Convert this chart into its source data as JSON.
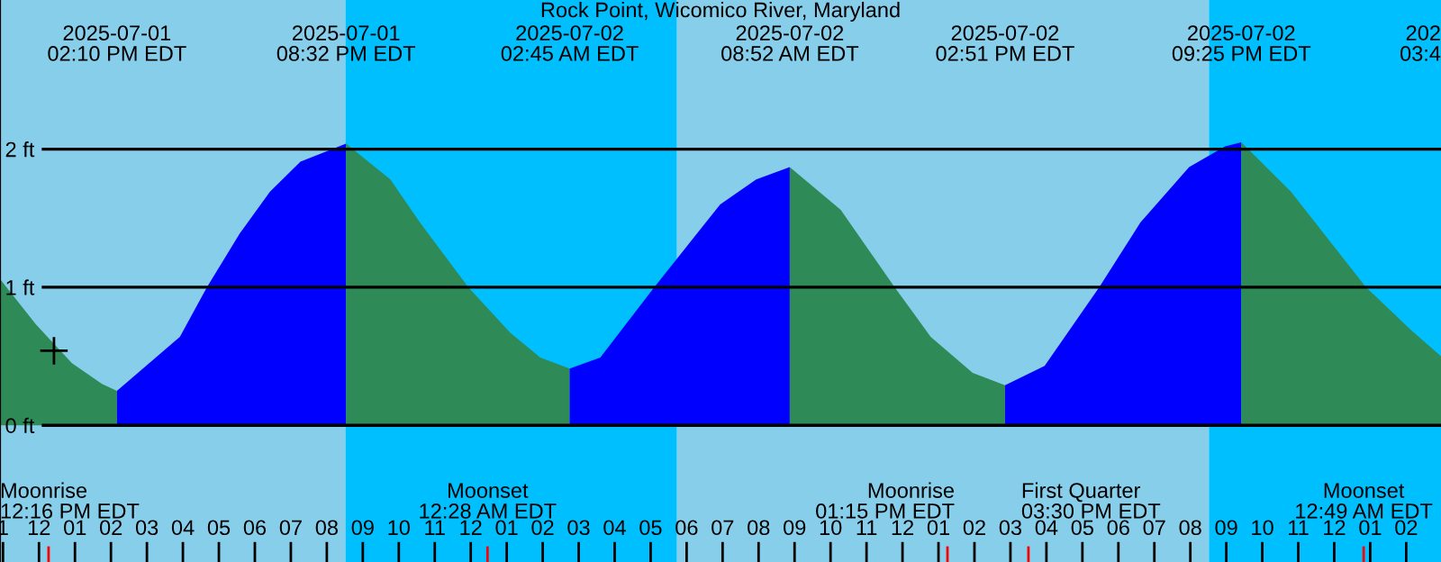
{
  "chart_data": {
    "type": "area",
    "title": "Rock Point, Wicomico River, Maryland",
    "xlim": [
      "2025-07-01T10:55",
      "2025-07-03T02:58"
    ],
    "ylim": [
      -0.99,
      3.08
    ],
    "yticks": [
      {
        "value": 0,
        "label": "0 ft"
      },
      {
        "value": 1,
        "label": "1 ft"
      },
      {
        "value": 2,
        "label": "2 ft"
      }
    ],
    "xticks": [
      {
        "value": "2025-07-01T11:00",
        "label": "1"
      },
      {
        "value": "2025-07-01T12:00",
        "label": "12"
      },
      {
        "value": "2025-07-01T13:00",
        "label": "01"
      },
      {
        "value": "2025-07-01T14:00",
        "label": "02"
      },
      {
        "value": "2025-07-01T15:00",
        "label": "03"
      },
      {
        "value": "2025-07-01T16:00",
        "label": "04"
      },
      {
        "value": "2025-07-01T17:00",
        "label": "05"
      },
      {
        "value": "2025-07-01T18:00",
        "label": "06"
      },
      {
        "value": "2025-07-01T19:00",
        "label": "07"
      },
      {
        "value": "2025-07-01T20:00",
        "label": "08"
      },
      {
        "value": "2025-07-01T21:00",
        "label": "09"
      },
      {
        "value": "2025-07-01T22:00",
        "label": "10"
      },
      {
        "value": "2025-07-01T23:00",
        "label": "11"
      },
      {
        "value": "2025-07-02T00:00",
        "label": "12"
      },
      {
        "value": "2025-07-02T01:00",
        "label": "01"
      },
      {
        "value": "2025-07-02T02:00",
        "label": "02"
      },
      {
        "value": "2025-07-02T03:00",
        "label": "03"
      },
      {
        "value": "2025-07-02T04:00",
        "label": "04"
      },
      {
        "value": "2025-07-02T05:00",
        "label": "05"
      },
      {
        "value": "2025-07-02T06:00",
        "label": "06"
      },
      {
        "value": "2025-07-02T07:00",
        "label": "07"
      },
      {
        "value": "2025-07-02T08:00",
        "label": "08"
      },
      {
        "value": "2025-07-02T09:00",
        "label": "09"
      },
      {
        "value": "2025-07-02T10:00",
        "label": "10"
      },
      {
        "value": "2025-07-02T11:00",
        "label": "11"
      },
      {
        "value": "2025-07-02T12:00",
        "label": "12"
      },
      {
        "value": "2025-07-02T13:00",
        "label": "01"
      },
      {
        "value": "2025-07-02T14:00",
        "label": "02"
      },
      {
        "value": "2025-07-02T15:00",
        "label": "03"
      },
      {
        "value": "2025-07-02T16:00",
        "label": "04"
      },
      {
        "value": "2025-07-02T17:00",
        "label": "05"
      },
      {
        "value": "2025-07-02T18:00",
        "label": "06"
      },
      {
        "value": "2025-07-02T19:00",
        "label": "07"
      },
      {
        "value": "2025-07-02T20:00",
        "label": "08"
      },
      {
        "value": "2025-07-02T21:00",
        "label": "09"
      },
      {
        "value": "2025-07-02T22:00",
        "label": "10"
      },
      {
        "value": "2025-07-02T23:00",
        "label": "11"
      },
      {
        "value": "2025-07-03T00:00",
        "label": "12"
      },
      {
        "value": "2025-07-03T01:00",
        "label": "01"
      },
      {
        "value": "2025-07-03T02:00",
        "label": "02"
      }
    ],
    "grid": "y",
    "bands": [
      {
        "axis": "x",
        "from": "2025-07-01T10:55",
        "to": "2025-07-01T20:31",
        "color": "#87ceeb"
      },
      {
        "axis": "x",
        "from": "2025-07-01T20:31",
        "to": "2025-07-02T05:44",
        "color": "#00bfff"
      },
      {
        "axis": "x",
        "from": "2025-07-02T05:44",
        "to": "2025-07-02T20:31",
        "color": "#87ceeb"
      },
      {
        "axis": "x",
        "from": "2025-07-02T20:31",
        "to": "2025-07-03T02:58",
        "color": "#00bfff"
      }
    ],
    "ref_lines": [
      {
        "axis": "x",
        "value": "2025-07-01T12:16",
        "label": "Moonrise\n12:16 PM EDT",
        "color": "#ff0000"
      },
      {
        "axis": "x",
        "value": "2025-07-02T00:28",
        "label": "Moonset\n12:28 AM EDT",
        "color": "#ff0000"
      },
      {
        "axis": "x",
        "value": "2025-07-02T13:15",
        "label": "Moonrise\n01:15 PM EDT",
        "color": "#ff0000"
      },
      {
        "axis": "x",
        "value": "2025-07-02T15:30",
        "label": "First Quarter\n03:30 PM EDT",
        "color": "#ff0000"
      },
      {
        "axis": "x",
        "value": "2025-07-03T00:49",
        "label": "Moonset\n12:49 AM EDT",
        "color": "#ff0000"
      }
    ],
    "series": [
      {
        "color": "#2e8b57",
        "x": [
          "2025-07-01T10:55",
          "2025-07-01T11:55",
          "2025-07-01T12:55",
          "2025-07-01T13:45",
          "2025-07-01T14:10"
        ],
        "values": [
          1.06,
          0.73,
          0.45,
          0.3,
          0.25
        ]
      },
      {
        "color": "#0000ff",
        "x": [
          "2025-07-01T14:10",
          "2025-07-01T15:55",
          "2025-07-01T16:40",
          "2025-07-01T17:35",
          "2025-07-01T18:25",
          "2025-07-01T19:16",
          "2025-07-01T20:32"
        ],
        "values": [
          0.25,
          0.64,
          1.0,
          1.39,
          1.69,
          1.91,
          2.04
        ]
      },
      {
        "color": "#2e8b57",
        "x": [
          "2025-07-01T20:32",
          "2025-07-01T21:46",
          "2025-07-01T22:35",
          "2025-07-01T23:56",
          "2025-07-02T01:06",
          "2025-07-02T01:56",
          "2025-07-02T02:45"
        ],
        "values": [
          2.04,
          1.78,
          1.47,
          1.0,
          0.67,
          0.49,
          0.41
        ]
      },
      {
        "color": "#0000ff",
        "x": [
          "2025-07-02T02:45",
          "2025-07-02T03:36",
          "2025-07-02T05:06",
          "2025-07-02T06:56",
          "2025-07-02T07:56",
          "2025-07-02T08:52"
        ],
        "values": [
          0.41,
          0.49,
          1.0,
          1.6,
          1.78,
          1.87
        ]
      },
      {
        "color": "#2e8b57",
        "x": [
          "2025-07-02T08:52",
          "2025-07-02T10:17",
          "2025-07-02T11:47",
          "2025-07-02T12:47",
          "2025-07-02T13:57",
          "2025-07-02T14:51"
        ],
        "values": [
          1.87,
          1.56,
          1.0,
          0.64,
          0.38,
          0.29
        ]
      },
      {
        "color": "#0000ff",
        "x": [
          "2025-07-02T14:51",
          "2025-07-02T15:57",
          "2025-07-02T17:28",
          "2025-07-02T18:37",
          "2025-07-02T19:58",
          "2025-07-02T20:58",
          "2025-07-02T21:25"
        ],
        "values": [
          0.29,
          0.43,
          1.0,
          1.47,
          1.87,
          2.02,
          2.05
        ]
      },
      {
        "color": "#2e8b57",
        "x": [
          "2025-07-02T21:25",
          "2025-07-02T22:48",
          "2025-07-03T00:53",
          "2025-07-03T02:08",
          "2025-07-03T02:58"
        ],
        "values": [
          2.05,
          1.69,
          1.0,
          0.69,
          0.5
        ]
      },
      {
        "type": "scatter",
        "color": "#000000",
        "marker": "cross",
        "x": [
          "2025-07-01T12:25"
        ],
        "values": [
          0.54
        ]
      }
    ],
    "annotations": [
      "2025-07-01\n02:10 PM EDT",
      "2025-07-01\n08:32 PM EDT",
      "2025-07-02\n02:45 AM EDT",
      "2025-07-02\n08:52 AM EDT",
      "2025-07-02\n02:51 PM EDT",
      "2025-07-02\n09:25 PM EDT",
      "202\n03:4"
    ]
  }
}
